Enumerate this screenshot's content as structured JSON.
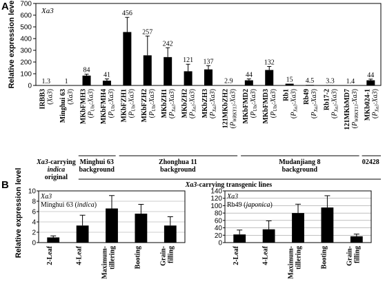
{
  "panels": {
    "a": "A",
    "b": "B"
  },
  "ylabel": "Relative expression level",
  "chart_data": [
    {
      "type": "bar",
      "title": "Xa3",
      "ylabel": "Relative expression level",
      "ylim": [
        0,
        700
      ],
      "yticks": [
        0,
        100,
        200,
        300,
        400,
        500,
        600,
        700
      ],
      "categories": [
        {
          "name": "IRBB3",
          "sub": "Xa3"
        },
        {
          "name": "Minghui 63",
          "sub": "Xa3"
        },
        {
          "name": "MKbFMH3",
          "sub": "P_Ubi:Xa3"
        },
        {
          "name": "MKbFMH4",
          "sub": "P_Ubi:Xa3"
        },
        {
          "name": "MKbFZH1",
          "sub": "P_Ubi:Xa3"
        },
        {
          "name": "MKbFZH2",
          "sub": "P_Ubi:Xa3"
        },
        {
          "name": "MKbZH1",
          "sub": "P_Xa3:Xa3"
        },
        {
          "name": "MKbZH2",
          "sub": "P_Xa3:Xa3"
        },
        {
          "name": "MKbZH3",
          "sub": "P_Xa3:Xa3"
        },
        {
          "name": "121MKbZH2",
          "sub": "P_WRKY13:Xa3"
        },
        {
          "name": "MKbFMD2",
          "sub": "P_Ubi:Xa3"
        },
        {
          "name": "MKbFMD3",
          "sub": "P_Ubi:Xa3"
        },
        {
          "name": "Rb1",
          "sub": "P_Xa3:Xa3"
        },
        {
          "name": "Rb49",
          "sub": "P_Xa3:Xa3"
        },
        {
          "name": "Rb17-2",
          "sub": "P_Xa3:Xa3"
        },
        {
          "name": "121MKbMD7",
          "sub": "P_WRKY13:Xa3"
        },
        {
          "name": "MKb024-1",
          "sub": "P_Xa3:Xa3"
        }
      ],
      "values": [
        1.3,
        1,
        84,
        41,
        456,
        257,
        242,
        121,
        137,
        2.9,
        44,
        132,
        15,
        4.5,
        3.3,
        1.4,
        44
      ],
      "errors": [
        0,
        0,
        12,
        15,
        125,
        165,
        80,
        60,
        32,
        0,
        12,
        30,
        0,
        0,
        0,
        0,
        10
      ],
      "value_labels": [
        "1.3",
        "1",
        "84",
        "41",
        "456",
        "257",
        "242",
        "121",
        "137",
        "2.9",
        "44",
        "132",
        "15",
        "4.5",
        "3.3",
        "1.4",
        "44"
      ],
      "groups": [
        {
          "lines": [
            "Xa3-carrying",
            "indica",
            "original"
          ]
        },
        {
          "lines": [
            "Minghui 63",
            "background"
          ]
        },
        {
          "lines": [
            "Zhonghua 11",
            "background"
          ]
        },
        {
          "lines": [
            "Mudanjiang 8",
            "background"
          ]
        },
        {
          "lines": [
            "02428"
          ]
        }
      ],
      "supergroup": "Xa3-carrying transgenic lines"
    },
    {
      "type": "bar",
      "title": "Xa3",
      "subtitle": "Minghui 63 (indica)",
      "ylim": [
        0,
        10
      ],
      "yticks": [
        0,
        2,
        4,
        6,
        8,
        10
      ],
      "categories": [
        "2-Leaf",
        "4-Leaf",
        "Maximum-tillering",
        "Booting",
        "Grain-filling"
      ],
      "category_lines": [
        [
          "2-Leaf"
        ],
        [
          "4-Leaf"
        ],
        [
          "Maximum-",
          "tillering"
        ],
        [
          "Booting"
        ],
        [
          "Grain-",
          "filling"
        ]
      ],
      "values": [
        1.0,
        3.3,
        6.6,
        5.6,
        3.3
      ],
      "errors": [
        0.3,
        2.0,
        2.5,
        1.8,
        1.7
      ]
    },
    {
      "type": "bar",
      "title": "Xa3",
      "subtitle": "Rb49 (japonica)",
      "ylim": [
        0,
        140
      ],
      "yticks": [
        0,
        20,
        40,
        60,
        80,
        100,
        120,
        140
      ],
      "categories": [
        "2-Leaf",
        "4-Leaf",
        "Maximum-tillering",
        "Booting",
        "Grain-filling"
      ],
      "category_lines": [
        [
          "2-Leaf"
        ],
        [
          "4-Leaf"
        ],
        [
          "Maximum-",
          "tillering"
        ],
        [
          "Booting"
        ],
        [
          "Grain-",
          "filling"
        ]
      ],
      "values": [
        22,
        36,
        80,
        95,
        17
      ],
      "errors": [
        12,
        23,
        24,
        32,
        6
      ]
    }
  ]
}
